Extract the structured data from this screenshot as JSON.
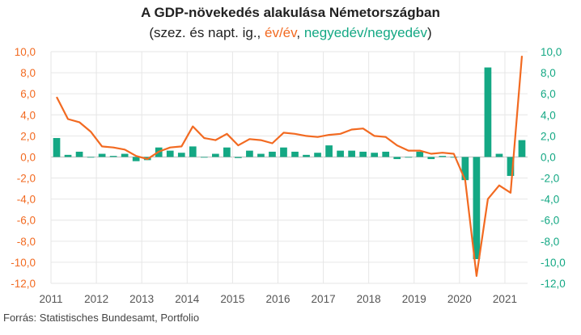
{
  "chart_data": {
    "type": "bar+line",
    "title": "A GDP-növekedés alakulása Németországban",
    "subtitle": {
      "prefix": "(szez. és napt. ig., ",
      "yoy_label": "év/év",
      "sep": ", ",
      "qoq_label": "negyedév/negyedév",
      "suffix": ")"
    },
    "source": "Forrás: Statistisches Bundesamt, Portfolio",
    "x_labels": [
      "2011",
      "2012",
      "2013",
      "2014",
      "2015",
      "2016",
      "2017",
      "2018",
      "2019",
      "2020",
      "2021"
    ],
    "y_ticks": [
      "10,0",
      "8,0",
      "6,0",
      "4,0",
      "2,0",
      "0,0",
      "-2,0",
      "-4,0",
      "-6,0",
      "-8,0",
      "-10,0",
      "-12,0"
    ],
    "ylim": [
      -12,
      10
    ],
    "grid": true,
    "quarters": [
      "2011Q1",
      "2011Q2",
      "2011Q3",
      "2011Q4",
      "2012Q1",
      "2012Q2",
      "2012Q3",
      "2012Q4",
      "2013Q1",
      "2013Q2",
      "2013Q3",
      "2013Q4",
      "2014Q1",
      "2014Q2",
      "2014Q3",
      "2014Q4",
      "2015Q1",
      "2015Q2",
      "2015Q3",
      "2015Q4",
      "2016Q1",
      "2016Q2",
      "2016Q3",
      "2016Q4",
      "2017Q1",
      "2017Q2",
      "2017Q3",
      "2017Q4",
      "2018Q1",
      "2018Q2",
      "2018Q3",
      "2018Q4",
      "2019Q1",
      "2019Q2",
      "2019Q3",
      "2019Q4",
      "2020Q1",
      "2020Q2",
      "2020Q3",
      "2020Q4",
      "2021Q1",
      "2021Q2"
    ],
    "series": [
      {
        "name": "negyedév/negyedév",
        "type": "bar",
        "axis": "right",
        "color": "#14a884",
        "values": [
          1.8,
          0.2,
          0.5,
          0.0,
          0.3,
          0.1,
          0.3,
          -0.4,
          -0.3,
          0.9,
          0.6,
          0.4,
          1.0,
          0.0,
          0.3,
          0.9,
          -0.1,
          0.6,
          0.3,
          0.5,
          0.9,
          0.5,
          0.2,
          0.4,
          1.1,
          0.6,
          0.6,
          0.5,
          0.4,
          0.5,
          -0.2,
          0.0,
          0.5,
          -0.2,
          0.1,
          0.0,
          -2.2,
          -9.7,
          8.5,
          0.3,
          -1.8,
          1.6
        ]
      },
      {
        "name": "év/év",
        "type": "line",
        "axis": "left",
        "color": "#f26a21",
        "values": [
          5.7,
          3.6,
          3.3,
          2.4,
          1.0,
          0.9,
          0.7,
          0.1,
          -0.2,
          0.5,
          0.9,
          1.0,
          2.9,
          1.8,
          1.6,
          2.2,
          1.1,
          1.7,
          1.6,
          1.3,
          2.3,
          2.2,
          2.0,
          1.9,
          2.1,
          2.2,
          2.6,
          2.7,
          2.0,
          1.9,
          1.1,
          0.6,
          0.6,
          0.3,
          0.4,
          0.3,
          -2.2,
          -11.3,
          -4.0,
          -2.7,
          -3.4,
          9.6
        ]
      }
    ]
  }
}
